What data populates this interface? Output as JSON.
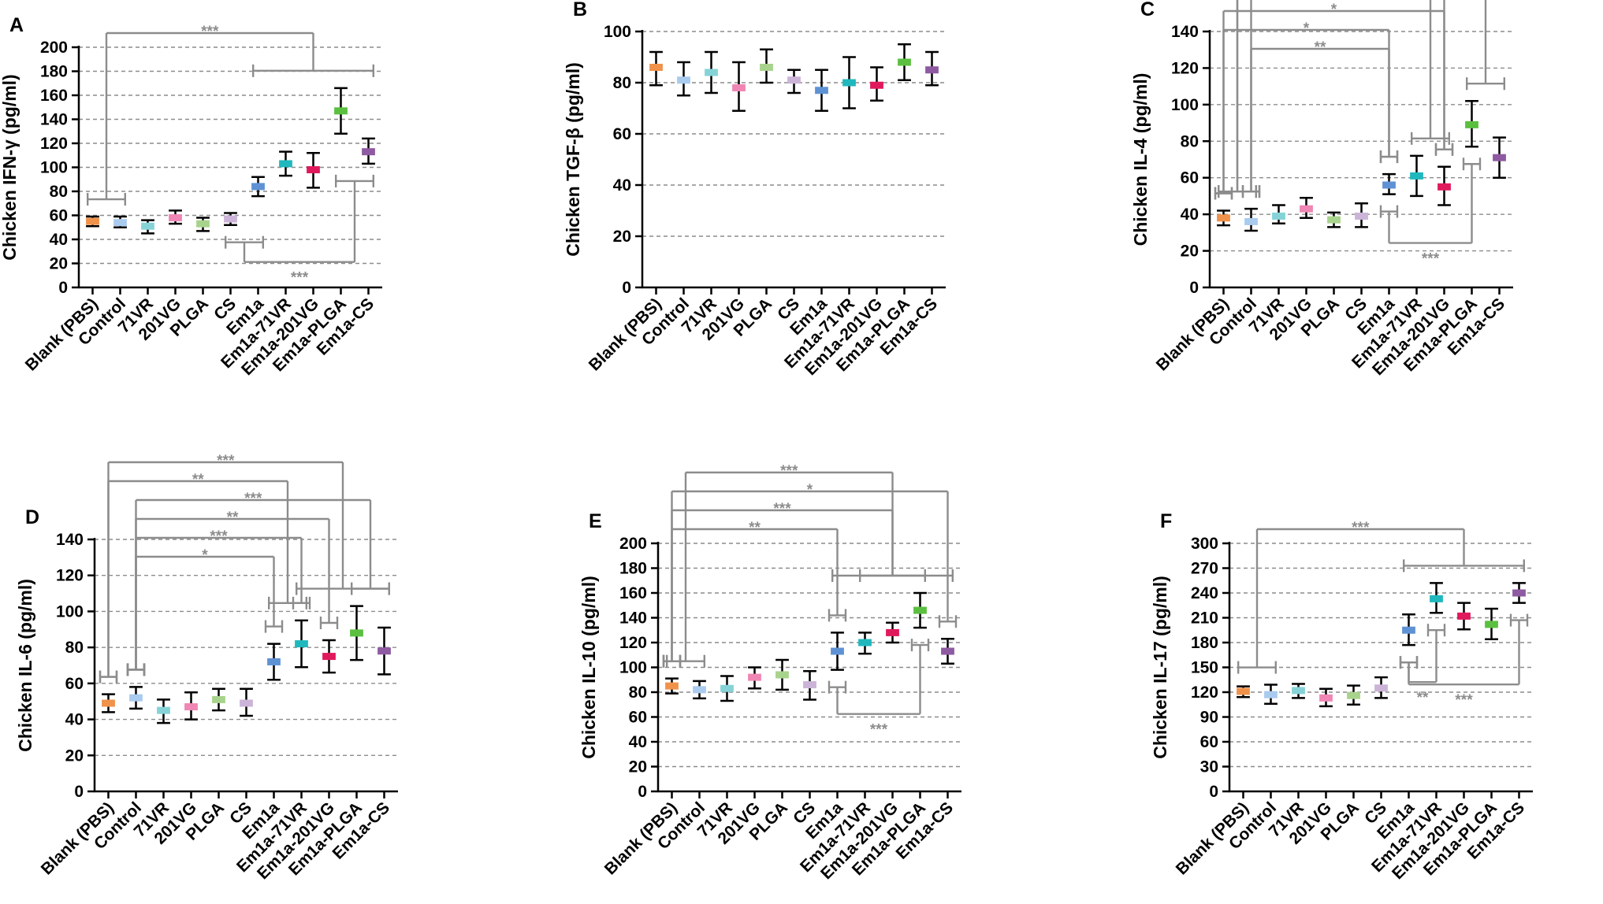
{
  "colors": {
    "groups": [
      "#f0924a",
      "#a9cbee",
      "#85d3d7",
      "#ef86b4",
      "#a8d38c",
      "#cbb4d8",
      "#5f92d4",
      "#20b8bd",
      "#e0195d",
      "#5bbf3f",
      "#8e5aa1"
    ],
    "axis": "#000000",
    "grid": "#8c8c8c",
    "significance": "#8c8c8c"
  },
  "chart_data": [
    {
      "panel": "A",
      "type": "bar",
      "ylabel": "Chicken IFN-γ (pg/ml)",
      "categories": [
        "Blank (PBS)",
        "Control",
        "71VR",
        "201VG",
        "PLGA",
        "CS",
        "Em1a",
        "Em1a-71VR",
        "Em1a-201VG",
        "Em1a-PLGA",
        "Em1a-CS"
      ],
      "ylim": [
        0,
        200
      ],
      "yticks": [
        0,
        20,
        40,
        60,
        80,
        100,
        120,
        140,
        160,
        180,
        200
      ],
      "tick_labels": [
        "0",
        "20",
        "40",
        "60",
        "80",
        "100",
        "120",
        "140",
        "160",
        "180",
        "200"
      ],
      "grid": true,
      "values": [
        55,
        54,
        51,
        58,
        53,
        57,
        84,
        103,
        98,
        147,
        113
      ],
      "err_low": [
        51,
        50,
        45,
        53,
        47,
        52,
        76,
        93,
        83,
        128,
        103
      ],
      "err_high": [
        59,
        59,
        56,
        64,
        58,
        62,
        92,
        113,
        112,
        166,
        124
      ],
      "brackets": [
        {
          "label": "***",
          "from": [
            0,
            1
          ],
          "to": [
            6,
            10
          ],
          "dir": "up"
        },
        {
          "label": "***",
          "from": [
            5,
            6
          ],
          "to": [
            9,
            10
          ],
          "dir": "down"
        }
      ]
    },
    {
      "panel": "B",
      "type": "bar",
      "ylabel": "Chicken TGF-β (pg/ml)",
      "categories": [
        "Blank (PBS)",
        "Control",
        "71VR",
        "201VG",
        "PLGA",
        "CS",
        "Em1a",
        "Em1a-71VR",
        "Em1a-201VG",
        "Em1a-PLGA",
        "Em1a-CS"
      ],
      "ylim": [
        0,
        100
      ],
      "yticks": [
        0,
        20,
        40,
        60,
        80,
        100
      ],
      "tick_labels": [
        "0",
        "20",
        "40",
        "60",
        "80",
        "100"
      ],
      "grid": true,
      "values": [
        86,
        81,
        84,
        78,
        86,
        81,
        77,
        80,
        79,
        88,
        85
      ],
      "err_low": [
        79,
        75,
        76,
        69,
        80,
        76,
        69,
        70,
        73,
        81,
        79
      ],
      "err_high": [
        92,
        88,
        92,
        88,
        93,
        85,
        85,
        90,
        86,
        95,
        92
      ],
      "brackets": []
    },
    {
      "panel": "C",
      "type": "bar",
      "ylabel": "Chicken IL-4 (pg/ml)",
      "categories": [
        "Blank (PBS)",
        "Control",
        "71VR",
        "201VG",
        "PLGA",
        "CS",
        "Em1a",
        "Em1a-71VR",
        "Em1a-201VG",
        "Em1a-PLGA",
        "Em1a-CS"
      ],
      "ylim": [
        0,
        140
      ],
      "yticks": [
        0,
        20,
        40,
        60,
        80,
        100,
        120,
        140
      ],
      "tick_labels": [
        "0",
        "20",
        "40",
        "60",
        "80",
        "100",
        "120",
        "140"
      ],
      "grid": true,
      "values": [
        38,
        36,
        39,
        43,
        37,
        39,
        56,
        61,
        55,
        89,
        71
      ],
      "err_low": [
        34,
        31,
        35,
        38,
        33,
        33,
        51,
        50,
        45,
        77,
        60
      ],
      "err_high": [
        42,
        43,
        45,
        49,
        41,
        46,
        62,
        72,
        66,
        102,
        82
      ],
      "brackets": [
        {
          "label": "***",
          "from": [
            0,
            1
          ],
          "to": [
            9,
            10
          ],
          "dir": "up"
        },
        {
          "label": "***",
          "from": [
            0,
            1
          ],
          "to": [
            7,
            8
          ],
          "dir": "up"
        },
        {
          "label": "**",
          "from": [
            1,
            1
          ],
          "to": [
            8,
            8
          ],
          "dir": "up"
        },
        {
          "label": "*",
          "from": [
            0,
            0
          ],
          "to": [
            8,
            8
          ],
          "dir": "up"
        },
        {
          "label": "*",
          "from": [
            0,
            0
          ],
          "to": [
            6,
            6
          ],
          "dir": "up"
        },
        {
          "label": "**",
          "from": [
            1,
            1
          ],
          "to": [
            6,
            6
          ],
          "dir": "up"
        },
        {
          "label": "***",
          "from": [
            6,
            6
          ],
          "to": [
            9,
            9
          ],
          "dir": "down"
        }
      ]
    },
    {
      "panel": "D",
      "type": "bar",
      "ylabel": "Chicken IL-6 (pg/ml)",
      "categories": [
        "Blank (PBS)",
        "Control",
        "71VR",
        "201VG",
        "PLGA",
        "CS",
        "Em1a",
        "Em1a-71VR",
        "Em1a-201VG",
        "Em1a-PLGA",
        "Em1a-CS"
      ],
      "ylim": [
        0,
        140
      ],
      "yticks": [
        0,
        20,
        40,
        60,
        80,
        100,
        120,
        140
      ],
      "tick_labels": [
        "0",
        "20",
        "40",
        "60",
        "80",
        "100",
        "120",
        "140"
      ],
      "grid": true,
      "values": [
        49,
        52,
        45,
        47,
        51,
        49,
        72,
        82,
        75,
        88,
        78
      ],
      "err_low": [
        44,
        46,
        38,
        40,
        45,
        42,
        62,
        69,
        66,
        73,
        65
      ],
      "err_high": [
        54,
        58,
        51,
        55,
        57,
        57,
        82,
        95,
        84,
        103,
        91
      ],
      "brackets": [
        {
          "label": "***",
          "from": [
            0,
            0
          ],
          "to": [
            7,
            10
          ],
          "dir": "up"
        },
        {
          "label": "**",
          "from": [
            0,
            0
          ],
          "to": [
            6,
            7
          ],
          "dir": "up"
        },
        {
          "label": "***",
          "from": [
            1,
            1
          ],
          "to": [
            9,
            10
          ],
          "dir": "up"
        },
        {
          "label": "**",
          "from": [
            1,
            1
          ],
          "to": [
            8,
            8
          ],
          "dir": "up"
        },
        {
          "label": "***",
          "from": [
            1,
            1
          ],
          "to": [
            7,
            7
          ],
          "dir": "up"
        },
        {
          "label": "*",
          "from": [
            1,
            1
          ],
          "to": [
            6,
            6
          ],
          "dir": "up"
        }
      ]
    },
    {
      "panel": "E",
      "type": "bar",
      "ylabel": "Chicken IL-10 (pg/ml)",
      "categories": [
        "Blank (PBS)",
        "Control",
        "71VR",
        "201VG",
        "PLGA",
        "CS",
        "Em1a",
        "Em1a-71VR",
        "Em1a-201VG",
        "Em1a-PLGA",
        "Em1a-CS"
      ],
      "ylim": [
        0,
        200
      ],
      "yticks": [
        0,
        20,
        40,
        60,
        80,
        100,
        120,
        140,
        160,
        180,
        200
      ],
      "tick_labels": [
        "0",
        "20",
        "40",
        "60",
        "80",
        "100",
        "120",
        "140",
        "160",
        "180",
        "200"
      ],
      "grid": true,
      "values": [
        85,
        82,
        83,
        92,
        94,
        86,
        113,
        120,
        128,
        146,
        113
      ],
      "err_low": [
        79,
        75,
        73,
        83,
        82,
        74,
        98,
        111,
        120,
        132,
        103
      ],
      "err_high": [
        91,
        89,
        93,
        100,
        106,
        97,
        128,
        128,
        136,
        160,
        123
      ],
      "brackets": [
        {
          "label": "***",
          "from": [
            0,
            1
          ],
          "to": [
            6,
            10
          ],
          "dir": "up"
        },
        {
          "label": "*",
          "from": [
            0,
            0
          ],
          "to": [
            10,
            10
          ],
          "dir": "up"
        },
        {
          "label": "***",
          "from": [
            0,
            0
          ],
          "to": [
            7,
            9
          ],
          "dir": "up"
        },
        {
          "label": "**",
          "from": [
            0,
            0
          ],
          "to": [
            6,
            6
          ],
          "dir": "up"
        },
        {
          "label": "***",
          "from": [
            6,
            6
          ],
          "to": [
            9,
            9
          ],
          "dir": "down"
        }
      ]
    },
    {
      "panel": "F",
      "type": "bar",
      "ylabel": "Chicken IL-17 (pg/ml)",
      "categories": [
        "Blank (PBS)",
        "Control",
        "71VR",
        "201VG",
        "PLGA",
        "CS",
        "Em1a",
        "Em1a-71VR",
        "Em1a-201VG",
        "Em1a-PLGA",
        "Em1a-CS"
      ],
      "ylim": [
        0,
        300
      ],
      "yticks": [
        0,
        30,
        60,
        90,
        120,
        150,
        180,
        210,
        240,
        270,
        300
      ],
      "tick_labels": [
        "0",
        "30",
        "60",
        "90",
        "120",
        "150",
        "180",
        "210",
        "240",
        "270",
        "300"
      ],
      "grid": true,
      "values": [
        121,
        117,
        122,
        113,
        116,
        125,
        195,
        233,
        212,
        202,
        240
      ],
      "err_low": [
        114,
        106,
        113,
        103,
        105,
        113,
        177,
        216,
        196,
        184,
        228
      ],
      "err_high": [
        127,
        129,
        130,
        124,
        128,
        138,
        214,
        252,
        228,
        221,
        252
      ],
      "brackets": [
        {
          "label": "***",
          "from": [
            0,
            1
          ],
          "to": [
            6,
            10
          ],
          "dir": "up"
        },
        {
          "label": "**",
          "from": [
            6,
            6
          ],
          "to": [
            7,
            7
          ],
          "dir": "down"
        },
        {
          "label": "***",
          "from": [
            6,
            6
          ],
          "to": [
            10,
            10
          ],
          "dir": "down"
        }
      ]
    }
  ]
}
